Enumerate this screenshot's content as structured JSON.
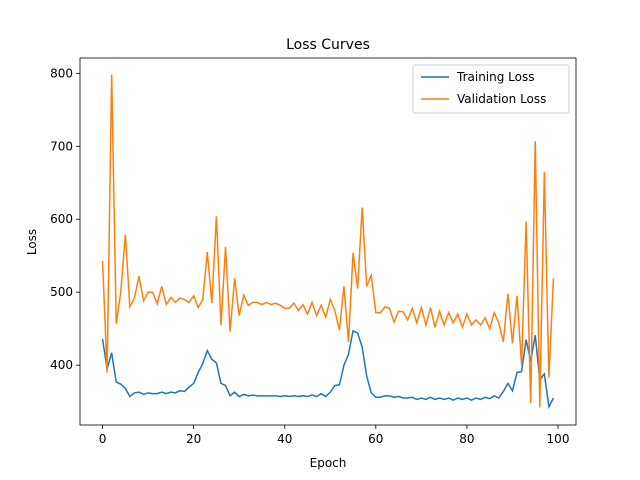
{
  "chart_data": {
    "type": "line",
    "title": "Loss Curves",
    "x_label": "Epoch",
    "y_label": "Loss",
    "x": [
      0,
      1,
      2,
      3,
      4,
      5,
      6,
      7,
      8,
      9,
      10,
      11,
      12,
      13,
      14,
      15,
      16,
      17,
      18,
      19,
      20,
      21,
      22,
      23,
      24,
      25,
      26,
      27,
      28,
      29,
      30,
      31,
      32,
      33,
      34,
      35,
      36,
      37,
      38,
      39,
      40,
      41,
      42,
      43,
      44,
      45,
      46,
      47,
      48,
      49,
      50,
      51,
      52,
      53,
      54,
      55,
      56,
      57,
      58,
      59,
      60,
      61,
      62,
      63,
      64,
      65,
      66,
      67,
      68,
      69,
      70,
      71,
      72,
      73,
      74,
      75,
      76,
      77,
      78,
      79,
      80,
      81,
      82,
      83,
      84,
      85,
      86,
      87,
      88,
      89,
      90,
      91,
      92,
      93,
      94,
      95,
      96,
      97,
      98,
      99
    ],
    "series": [
      {
        "name": "Training Loss",
        "color": "#1f77b4",
        "values": [
          436,
          395,
          417,
          377,
          374,
          368,
          357,
          362,
          363,
          360,
          362,
          361,
          361,
          363,
          361,
          363,
          362,
          365,
          364,
          370,
          375,
          390,
          402,
          420,
          408,
          403,
          375,
          372,
          358,
          363,
          357,
          360,
          358,
          359,
          358,
          358,
          358,
          358,
          358,
          357,
          358,
          357,
          358,
          357,
          358,
          357,
          359,
          357,
          361,
          357,
          363,
          372,
          373,
          400,
          415,
          447,
          444,
          425,
          385,
          362,
          356,
          356,
          358,
          358,
          356,
          357,
          355,
          355,
          356,
          353,
          355,
          353,
          356,
          353,
          355,
          353,
          355,
          352,
          355,
          353,
          355,
          352,
          355,
          353,
          356,
          354,
          358,
          355,
          364,
          375,
          365,
          390,
          391,
          435,
          405,
          441,
          380,
          388,
          343,
          355
        ]
      },
      {
        "name": "Validation Loss",
        "color": "#ff7f0e",
        "values": [
          543,
          390,
          798,
          457,
          500,
          579,
          480,
          492,
          522,
          488,
          500,
          500,
          484,
          508,
          483,
          493,
          486,
          492,
          490,
          486,
          495,
          479,
          490,
          555,
          485,
          604,
          455,
          562,
          446,
          519,
          468,
          496,
          482,
          486,
          486,
          483,
          486,
          483,
          485,
          482,
          478,
          478,
          485,
          475,
          483,
          470,
          486,
          468,
          482,
          466,
          490,
          475,
          448,
          508,
          432,
          554,
          505,
          616,
          508,
          523,
          472,
          472,
          480,
          478,
          459,
          474,
          473,
          462,
          478,
          458,
          479,
          455,
          479,
          452,
          474,
          455,
          472,
          458,
          470,
          452,
          470,
          455,
          462,
          455,
          465,
          450,
          472,
          458,
          432,
          498,
          430,
          495,
          400,
          597,
          348,
          707,
          342,
          665,
          383,
          519
        ]
      }
    ],
    "xlim": [
      -4.95,
      103.95
    ],
    "ylim": [
      318,
      821
    ],
    "xticks": [
      0,
      20,
      40,
      60,
      80,
      100
    ],
    "yticks": [
      400,
      500,
      600,
      700,
      800
    ],
    "grid": false,
    "legend": "upper right"
  }
}
